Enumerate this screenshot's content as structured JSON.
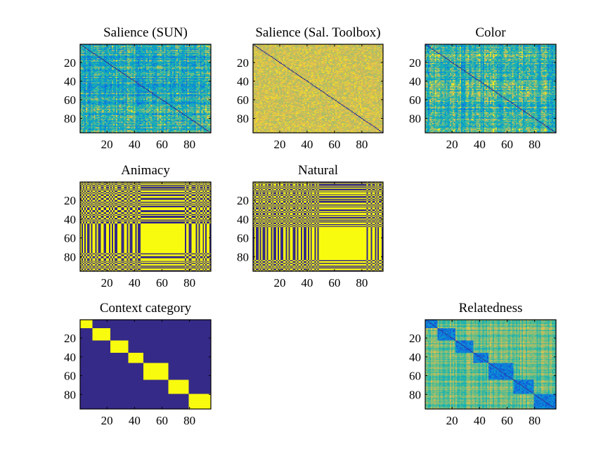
{
  "chart_data": [
    {
      "type": "heatmap",
      "title": "Salience (SUN)",
      "pattern": "noise",
      "colormap": "parula",
      "base": 0.58,
      "spread": 0.4,
      "cross": 0.3,
      "diagonal": "dark-line",
      "xlim": [
        0,
        95
      ],
      "ylim": [
        0,
        95
      ],
      "xticks": [
        "20",
        "40",
        "60",
        "80"
      ],
      "yticks": [
        "20",
        "40",
        "60",
        "80"
      ]
    },
    {
      "type": "heatmap",
      "title": "Salience (Sal. Toolbox)",
      "pattern": "noise",
      "colormap": "parula",
      "base": 0.9,
      "spread": 0.14,
      "cross": 0.0,
      "diagonal": "dark-line",
      "xlim": [
        0,
        95
      ],
      "ylim": [
        0,
        95
      ],
      "xticks": [
        "20",
        "40",
        "60",
        "80"
      ],
      "yticks": [
        "20",
        "40",
        "60",
        "80"
      ]
    },
    {
      "type": "heatmap",
      "title": "Color",
      "pattern": "noise",
      "colormap": "parula",
      "base": 0.62,
      "spread": 0.38,
      "cross": 0.3,
      "diagonal": "dark-line",
      "xlim": [
        0,
        95
      ],
      "ylim": [
        0,
        95
      ],
      "xticks": [
        "20",
        "40",
        "60",
        "80"
      ],
      "yticks": [
        "20",
        "40",
        "60",
        "80"
      ]
    },
    {
      "type": "heatmap",
      "title": "Animacy",
      "pattern": "binary",
      "colormap": "parula",
      "labels": [
        1,
        0,
        1,
        0,
        1,
        0,
        0,
        1,
        0,
        1,
        1,
        0,
        1,
        0,
        0,
        1,
        1,
        0,
        0,
        1,
        1,
        0,
        1,
        0,
        1,
        0,
        0,
        1,
        1,
        1,
        0,
        0,
        1,
        1,
        0,
        1,
        0,
        0,
        1,
        1,
        0,
        1,
        0,
        0,
        1,
        1,
        1,
        1,
        1,
        1,
        1,
        1,
        1,
        1,
        1,
        1,
        1,
        1,
        1,
        1,
        1,
        1,
        1,
        1,
        1,
        1,
        1,
        1,
        1,
        1,
        1,
        1,
        1,
        1,
        1,
        1,
        0,
        1,
        1,
        0,
        0,
        1,
        1,
        1,
        0,
        1,
        0,
        1,
        1,
        0,
        1,
        0,
        1,
        1,
        0
      ],
      "xlim": [
        0,
        95
      ],
      "ylim": [
        0,
        95
      ],
      "xticks": [
        "20",
        "40",
        "60",
        "80"
      ],
      "yticks": [
        "20",
        "40",
        "60",
        "80"
      ]
    },
    {
      "type": "heatmap",
      "title": "Natural",
      "pattern": "binary",
      "colormap": "parula",
      "labels": [
        1,
        0,
        1,
        1,
        0,
        1,
        0,
        1,
        1,
        0,
        1,
        0,
        0,
        1,
        0,
        1,
        1,
        0,
        1,
        0,
        1,
        1,
        0,
        0,
        1,
        0,
        1,
        0,
        0,
        1,
        1,
        0,
        1,
        0,
        0,
        1,
        0,
        1,
        1,
        0,
        1,
        0,
        1,
        0,
        0,
        1,
        0,
        1,
        0,
        0,
        0,
        0,
        0,
        0,
        0,
        0,
        0,
        0,
        0,
        0,
        0,
        0,
        0,
        0,
        0,
        0,
        0,
        0,
        0,
        0,
        0,
        0,
        0,
        0,
        0,
        0,
        0,
        0,
        0,
        0,
        0,
        0,
        0,
        1,
        0,
        0,
        1,
        0,
        0,
        1,
        0,
        1,
        0,
        0,
        1
      ],
      "xlim": [
        0,
        95
      ],
      "ylim": [
        0,
        95
      ],
      "xticks": [
        "20",
        "40",
        "60",
        "80"
      ],
      "yticks": [
        "20",
        "40",
        "60",
        "80"
      ]
    },
    {
      "type": "heatmap",
      "title": "Context category",
      "pattern": "blocks",
      "colormap": "parula",
      "blocks": [
        [
          0,
          9
        ],
        [
          9,
          22
        ],
        [
          22,
          35
        ],
        [
          35,
          46
        ],
        [
          46,
          64
        ],
        [
          64,
          79
        ],
        [
          79,
          95
        ]
      ],
      "xlim": [
        0,
        95
      ],
      "ylim": [
        0,
        95
      ],
      "xticks": [
        "20",
        "40",
        "60",
        "80"
      ],
      "yticks": [
        "20",
        "40",
        "60",
        "80"
      ]
    },
    {
      "type": "heatmap",
      "title": "Relatedness",
      "pattern": "related",
      "colormap": "parula",
      "blocks": [
        [
          0,
          9
        ],
        [
          9,
          22
        ],
        [
          22,
          35
        ],
        [
          35,
          46
        ],
        [
          46,
          64
        ],
        [
          64,
          79
        ],
        [
          79,
          95
        ]
      ],
      "xlim": [
        0,
        95
      ],
      "ylim": [
        0,
        95
      ],
      "xticks": [
        "20",
        "40",
        "60",
        "80"
      ],
      "yticks": [
        "20",
        "40",
        "60",
        "80"
      ]
    }
  ]
}
